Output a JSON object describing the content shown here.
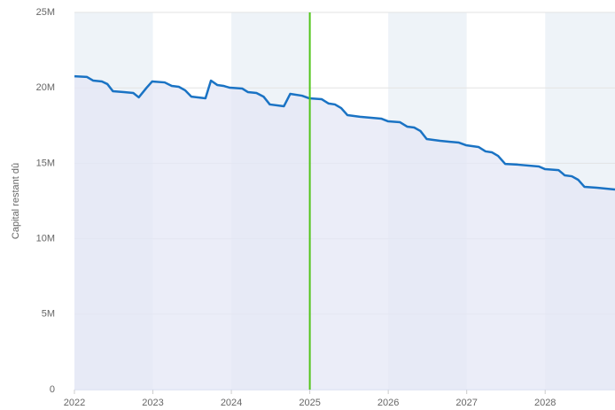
{
  "chart_data": {
    "type": "area",
    "y_label": "Capital restant dû",
    "x": [
      2022.0,
      2022.16,
      2022.24,
      2022.35,
      2022.42,
      2022.49,
      2022.63,
      2022.75,
      2022.82,
      2022.92,
      2022.99,
      2023.15,
      2023.24,
      2023.33,
      2023.41,
      2023.49,
      2023.67,
      2023.74,
      2023.82,
      2023.9,
      2023.98,
      2024.14,
      2024.21,
      2024.32,
      2024.41,
      2024.49,
      2024.67,
      2024.75,
      2024.9,
      2024.99,
      2025.15,
      2025.24,
      2025.32,
      2025.4,
      2025.48,
      2025.64,
      2025.91,
      2026.0,
      2026.15,
      2026.24,
      2026.33,
      2026.41,
      2026.49,
      2026.66,
      2026.9,
      2026.99,
      2027.15,
      2027.24,
      2027.32,
      2027.4,
      2027.49,
      2027.65,
      2027.92,
      2028.0,
      2028.17,
      2028.25,
      2028.34,
      2028.42,
      2028.5,
      2028.66,
      2028.89
    ],
    "values": [
      20770000,
      20720000,
      20480000,
      20420000,
      20250000,
      19780000,
      19720000,
      19660000,
      19370000,
      20010000,
      20420000,
      20360000,
      20130000,
      20070000,
      19840000,
      19420000,
      19310000,
      20480000,
      20190000,
      20130000,
      20010000,
      19950000,
      19720000,
      19660000,
      19420000,
      18900000,
      18780000,
      19600000,
      19480000,
      19310000,
      19250000,
      18960000,
      18900000,
      18660000,
      18190000,
      18080000,
      17960000,
      17780000,
      17720000,
      17430000,
      17370000,
      17140000,
      16610000,
      16490000,
      16370000,
      16200000,
      16080000,
      15790000,
      15730000,
      15490000,
      14960000,
      14910000,
      14790000,
      14610000,
      14550000,
      14200000,
      14140000,
      13910000,
      13440000,
      13380000,
      13260000
    ],
    "color": "#1a73c4",
    "fill": "#e4e7f5",
    "xlim": [
      2022,
      2028.89
    ],
    "xticks": [
      2022,
      2023,
      2024,
      2025,
      2026,
      2027,
      2028
    ],
    "ylim": [
      0,
      25000000
    ],
    "yticks": [
      0,
      {
        "value": 5000000,
        "label": "5M"
      },
      {
        "value": 10000000,
        "label": "10M"
      },
      {
        "value": 15000000,
        "label": "15M"
      },
      {
        "value": 20000000,
        "label": "20M"
      },
      {
        "value": 25000000,
        "label": "25M"
      }
    ],
    "grid": true,
    "vline": {
      "x": 2025,
      "color": "#52c41a"
    }
  }
}
